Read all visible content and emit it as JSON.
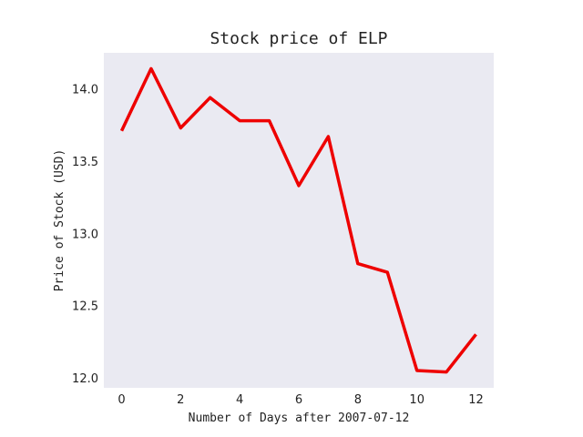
{
  "chart_data": {
    "type": "line",
    "title": "Stock price of ELP",
    "xlabel": "Number of Days after 2007-07-12",
    "ylabel": "Price of Stock (USD)",
    "xlim": [
      -0.6,
      12.6
    ],
    "ylim": [
      11.93,
      14.25
    ],
    "xticks": [
      0,
      2,
      4,
      6,
      8,
      10,
      12
    ],
    "xtick_labels": [
      "0",
      "2",
      "4",
      "6",
      "8",
      "10",
      "12"
    ],
    "yticks": [
      12.0,
      12.5,
      13.0,
      13.5,
      14.0
    ],
    "ytick_labels": [
      "12.0",
      "12.5",
      "13.0",
      "13.5",
      "14.0"
    ],
    "grid": false,
    "series": [
      {
        "x": [
          0,
          1,
          2,
          3,
          4,
          5,
          6,
          7,
          8,
          9,
          10,
          11,
          12
        ],
        "y": [
          13.71,
          14.14,
          13.73,
          13.94,
          13.78,
          13.78,
          13.33,
          13.67,
          12.79,
          12.73,
          12.05,
          12.04,
          12.3
        ],
        "color": "#ee0000"
      }
    ],
    "plot_background": "#eaeaf2"
  }
}
